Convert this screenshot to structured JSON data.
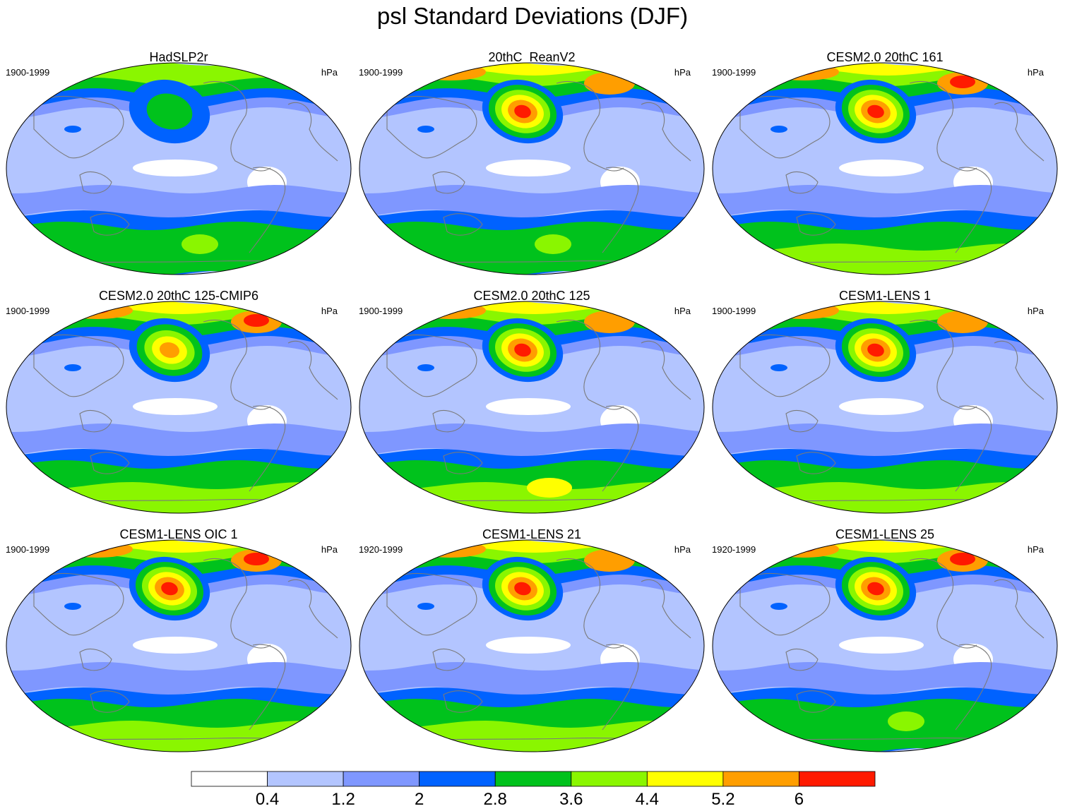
{
  "title": "psl Standard Deviations (DJF)",
  "colors": {
    "white": "#ffffff",
    "c1": "#b3c5ff",
    "c2": "#7f97ff",
    "c3": "#0062ff",
    "c4": "#00c21c",
    "c5": "#8af600",
    "c6": "#ffff00",
    "c7": "#ff9e00",
    "c8": "#ff1a00",
    "coast": "#7a7a7a"
  },
  "colorbar": {
    "labels": [
      "0.4",
      "1.2",
      "2",
      "2.8",
      "3.6",
      "4.4",
      "5.2",
      "6"
    ],
    "fill_colors": [
      "#ffffff",
      "#b3c5ff",
      "#7f97ff",
      "#0062ff",
      "#00c21c",
      "#8af600",
      "#ffff00",
      "#ff9e00",
      "#ff1a00"
    ]
  },
  "panels": [
    {
      "title": "HadSLP2r",
      "period": "1900-1999",
      "units": "hPa",
      "aleutian_max_level": 4,
      "north_atlantic_level": 5,
      "south_level": 4
    },
    {
      "title": "20thC_ReanV2",
      "period": "1900-1999",
      "units": "hPa",
      "aleutian_max_level": 8,
      "north_atlantic_level": 7,
      "south_level": 4
    },
    {
      "title": "CESM2.0 20thC 161",
      "period": "1900-1999",
      "units": "hPa",
      "aleutian_max_level": 8,
      "north_atlantic_level": 8,
      "south_level": 5
    },
    {
      "title": "CESM2.0 20thC 125-CMIP6",
      "period": "1900-1999",
      "units": "hPa",
      "aleutian_max_level": 7,
      "north_atlantic_level": 8,
      "south_level": 5
    },
    {
      "title": "CESM2.0 20thC 125",
      "period": "1900-1999",
      "units": "hPa",
      "aleutian_max_level": 8,
      "north_atlantic_level": 7,
      "south_level": 6
    },
    {
      "title": "CESM1-LENS 1",
      "period": "1900-1999",
      "units": "hPa",
      "aleutian_max_level": 8,
      "north_atlantic_level": 7,
      "south_level": 5
    },
    {
      "title": "CESM1-LENS OIC 1",
      "period": "1900-1999",
      "units": "hPa",
      "aleutian_max_level": 8,
      "north_atlantic_level": 8,
      "south_level": 5
    },
    {
      "title": "CESM1-LENS 21",
      "period": "1920-1999",
      "units": "hPa",
      "aleutian_max_level": 8,
      "north_atlantic_level": 7,
      "south_level": 5
    },
    {
      "title": "CESM1-LENS 25",
      "period": "1920-1999",
      "units": "hPa",
      "aleutian_max_level": 8,
      "north_atlantic_level": 8,
      "south_level": 4
    }
  ]
}
